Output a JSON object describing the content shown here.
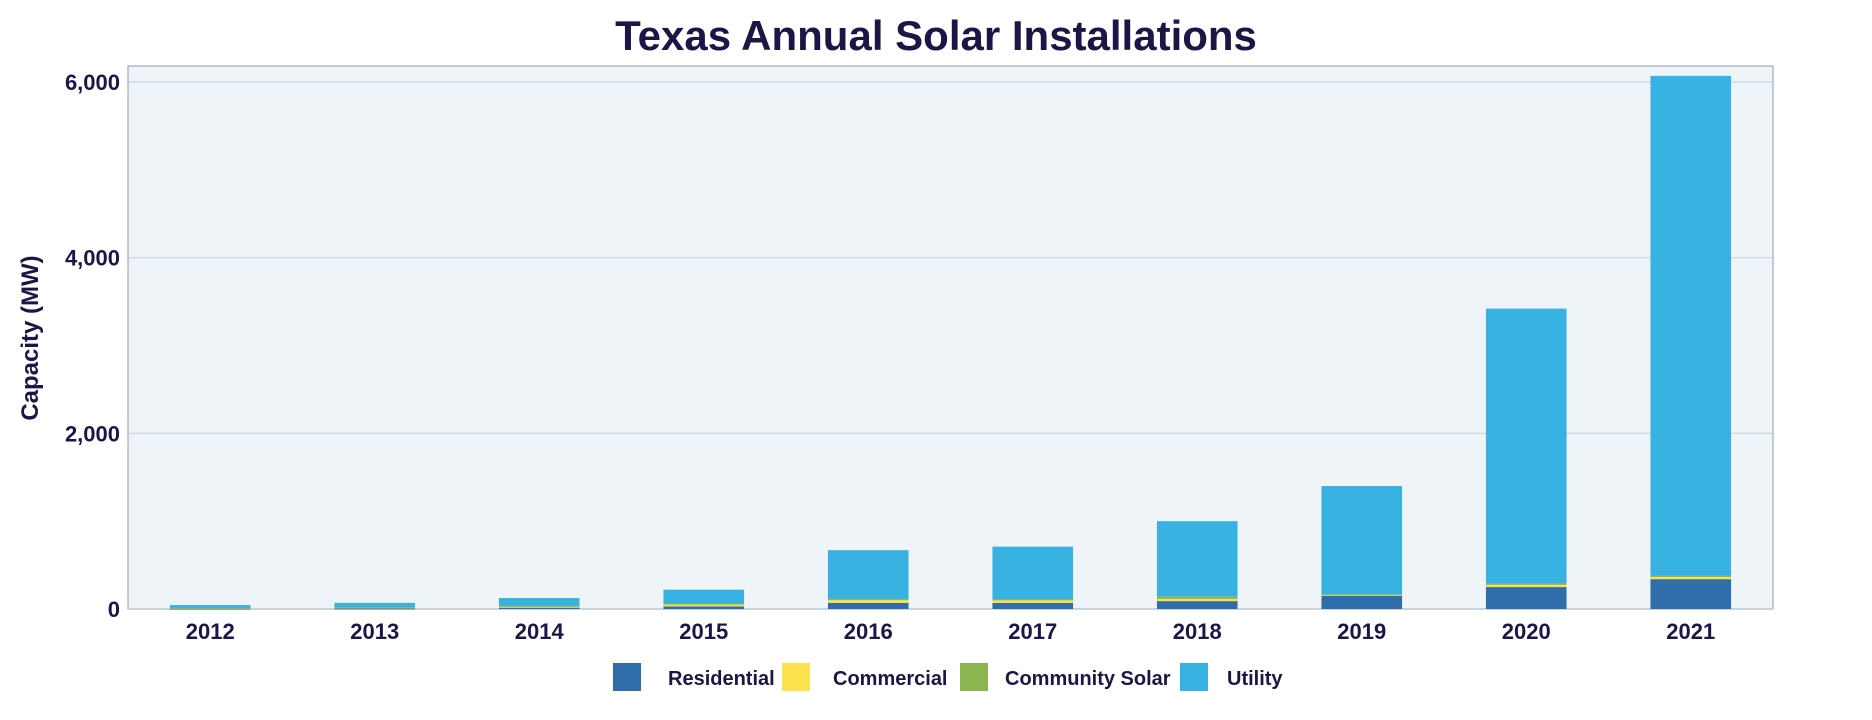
{
  "chart_data": {
    "type": "bar",
    "stacked": true,
    "title": "Texas Annual Solar Installations",
    "xlabel": "",
    "ylabel": "Capacity (MW)",
    "ylim": [
      0,
      6200
    ],
    "yticks": [
      0,
      2000,
      4000,
      6000
    ],
    "ytick_labels": [
      "0",
      "2,000",
      "4,000",
      "6,000"
    ],
    "grid": true,
    "legend_position": "bottom",
    "categories": [
      "2012",
      "2013",
      "2014",
      "2015",
      "2016",
      "2017",
      "2018",
      "2019",
      "2020",
      "2021"
    ],
    "series": [
      {
        "name": "Residential",
        "color": "#2f6dab",
        "values": [
          5,
          8,
          15,
          30,
          70,
          70,
          90,
          150,
          250,
          340
        ]
      },
      {
        "name": "Commercial",
        "color": "#fde24f",
        "values": [
          5,
          10,
          15,
          30,
          40,
          35,
          25,
          15,
          35,
          35
        ]
      },
      {
        "name": "Community Solar",
        "color": "#8ab550",
        "values": [
          2,
          2,
          5,
          2,
          2,
          5,
          30,
          2,
          2,
          2
        ]
      },
      {
        "name": "Utility",
        "color": "#38b2e3",
        "values": [
          33,
          50,
          90,
          158,
          558,
          600,
          855,
          1233,
          3133,
          5693
        ]
      }
    ],
    "colors": {
      "plot_background": "#eef4f7",
      "text": "#1c1646",
      "grid": "#c9d3dc"
    }
  }
}
